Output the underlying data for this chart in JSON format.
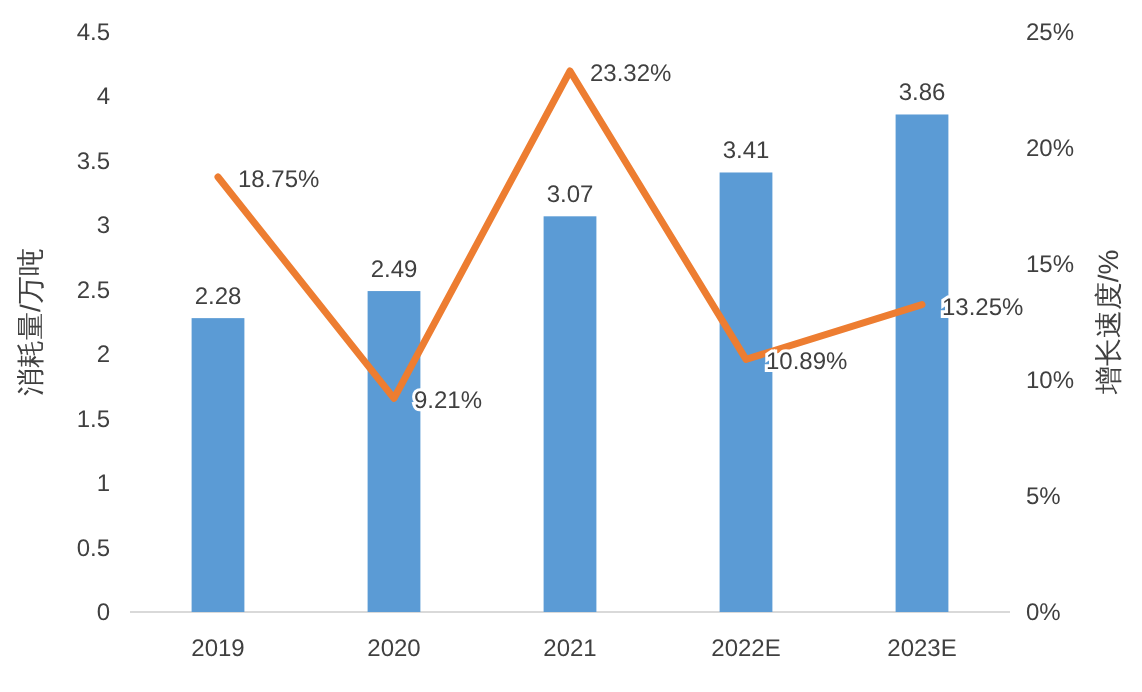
{
  "chart_data": {
    "type": "bar",
    "ylabel": "消耗量/万吨",
    "y2label": "增长速度/%",
    "categories": [
      "2019",
      "2020",
      "2021",
      "2022E",
      "2023E"
    ],
    "series": [
      {
        "color": "#5b9bd5",
        "values": [
          2.28,
          2.49,
          3.07,
          3.41,
          3.86
        ],
        "value_labels": [
          "2.28",
          "2.49",
          "3.07",
          "3.41",
          "3.86"
        ]
      },
      {
        "type": "line",
        "axis": "y2",
        "color": "#ed7d31",
        "values": [
          18.75,
          9.21,
          23.32,
          10.89,
          13.25
        ],
        "value_labels": [
          "18.75%",
          "9.21%",
          "23.32%",
          "10.89%",
          "13.25%"
        ]
      }
    ],
    "ylim": [
      0,
      4.5
    ],
    "yticks": [
      0,
      0.5,
      1,
      1.5,
      2,
      2.5,
      3,
      3.5,
      4,
      4.5
    ],
    "y2lim": [
      0,
      25
    ],
    "y2ticks": [
      {
        "value": 0,
        "label": "0%"
      },
      {
        "value": 5,
        "label": "5%"
      },
      {
        "value": 10,
        "label": "10%"
      },
      {
        "value": 15,
        "label": "15%"
      },
      {
        "value": 20,
        "label": "20%"
      },
      {
        "value": 25,
        "label": "25%"
      }
    ],
    "grid": false,
    "marker": "none"
  }
}
